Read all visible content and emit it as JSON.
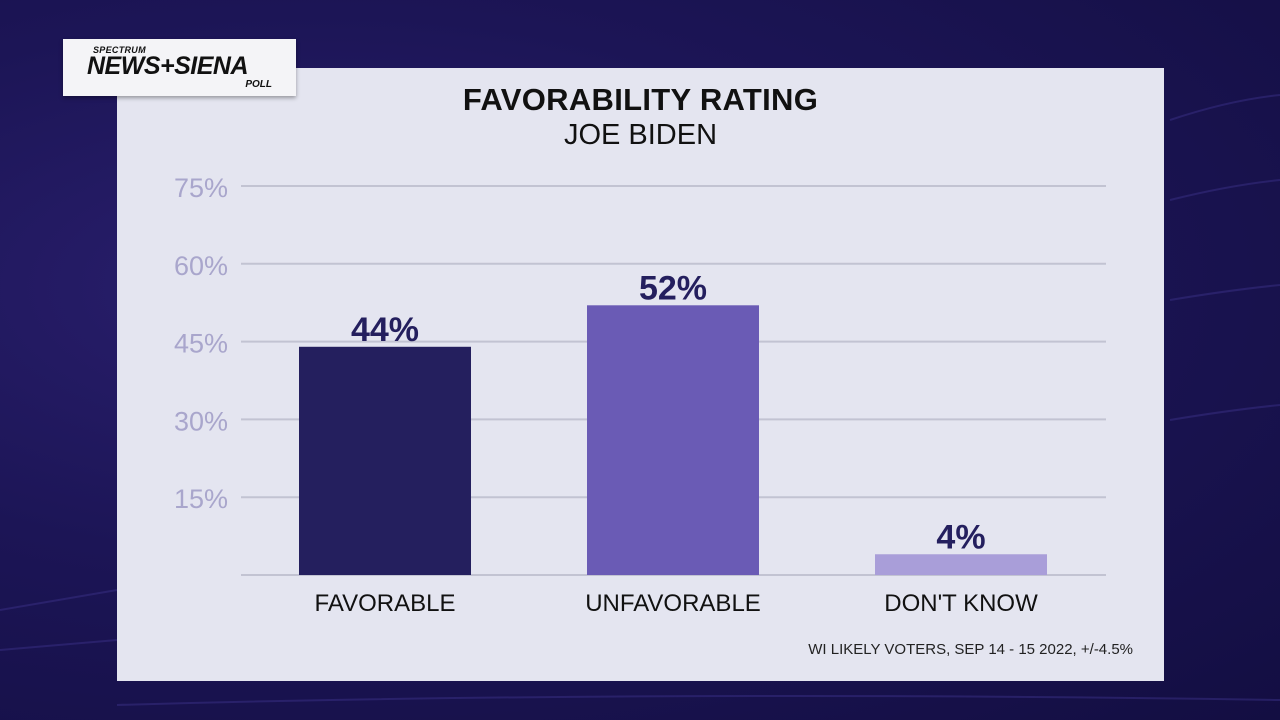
{
  "logo": {
    "top": "SPECTRUM",
    "main": "NEWS+SIENA",
    "sub": "POLL"
  },
  "chart_data": {
    "type": "bar",
    "title": "FAVORABILITY RATING",
    "subtitle": "JOE BIDEN",
    "categories": [
      "FAVORABLE",
      "UNFAVORABLE",
      "DON'T KNOW"
    ],
    "values": [
      44,
      52,
      4
    ],
    "value_labels": [
      "44%",
      "52%",
      "4%"
    ],
    "colors": [
      "#241f5e",
      "#6a5bb5",
      "#a99ed9"
    ],
    "yticks": [
      15,
      30,
      45,
      60,
      75
    ],
    "ytick_labels": [
      "15%",
      "30%",
      "45%",
      "60%",
      "75%"
    ],
    "ylim": [
      0,
      75
    ],
    "grid": true
  },
  "footnote": "WI LIKELY VOTERS, SEP 14 - 15 2022, +/-4.5%"
}
